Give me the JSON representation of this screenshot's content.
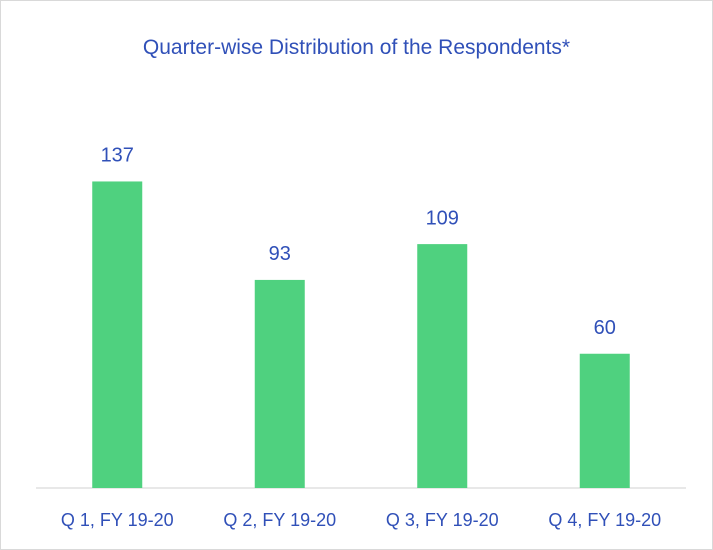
{
  "chart_data": {
    "type": "bar",
    "title": "Quarter-wise Distribution of the Respondents*",
    "categories": [
      "Q 1, FY 19-20",
      "Q 2, FY 19-20",
      "Q 3, FY 19-20",
      "Q 4, FY 19-20"
    ],
    "values": [
      137,
      93,
      109,
      60
    ],
    "color": "#4fd17f",
    "ylim": [
      0,
      160
    ]
  }
}
